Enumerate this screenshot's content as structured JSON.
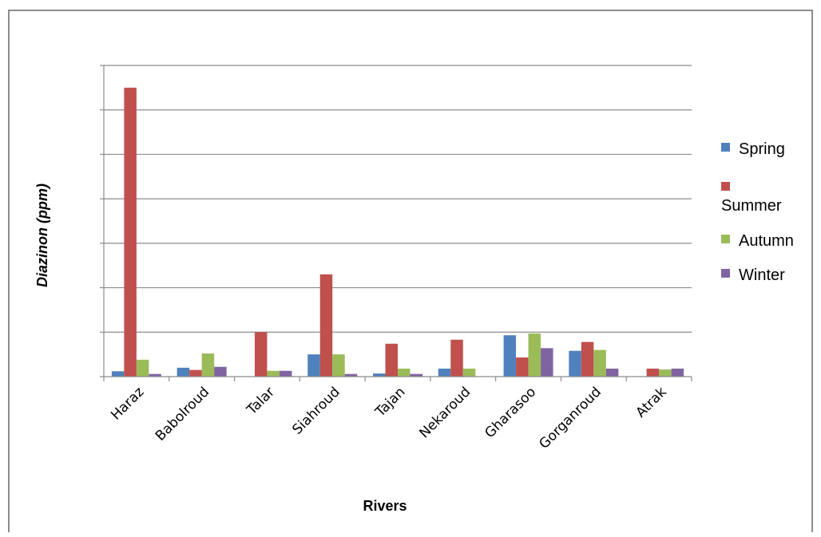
{
  "chart_data": {
    "type": "bar",
    "title": "",
    "xlabel": "Rivers",
    "ylabel": "Diazinon (ppm)",
    "categories": [
      "Haraz",
      "Babolroud",
      "Talar",
      "Siahroud",
      "Tajan",
      "Nekaroud",
      "Gharasoo",
      "Gorganroud",
      "Atrak"
    ],
    "ylim": [
      0,
      7
    ],
    "grid": true,
    "legend_position": "right",
    "series": [
      {
        "name": "Spring",
        "color": "#4f81bd",
        "values": [
          0.12,
          0.2,
          0.0,
          0.5,
          0.07,
          0.18,
          0.93,
          0.58,
          0.0
        ]
      },
      {
        "name": "Summer",
        "color": "#c0504d",
        "values": [
          6.5,
          0.15,
          1.0,
          2.3,
          0.74,
          0.83,
          0.43,
          0.78,
          0.18
        ]
      },
      {
        "name": "Autumn",
        "color": "#9bbb59",
        "values": [
          0.38,
          0.52,
          0.13,
          0.5,
          0.18,
          0.18,
          0.97,
          0.6,
          0.16
        ]
      },
      {
        "name": "Winter",
        "color": "#8064a2",
        "values": [
          0.06,
          0.22,
          0.13,
          0.06,
          0.06,
          0.0,
          0.64,
          0.18,
          0.18
        ]
      }
    ]
  }
}
